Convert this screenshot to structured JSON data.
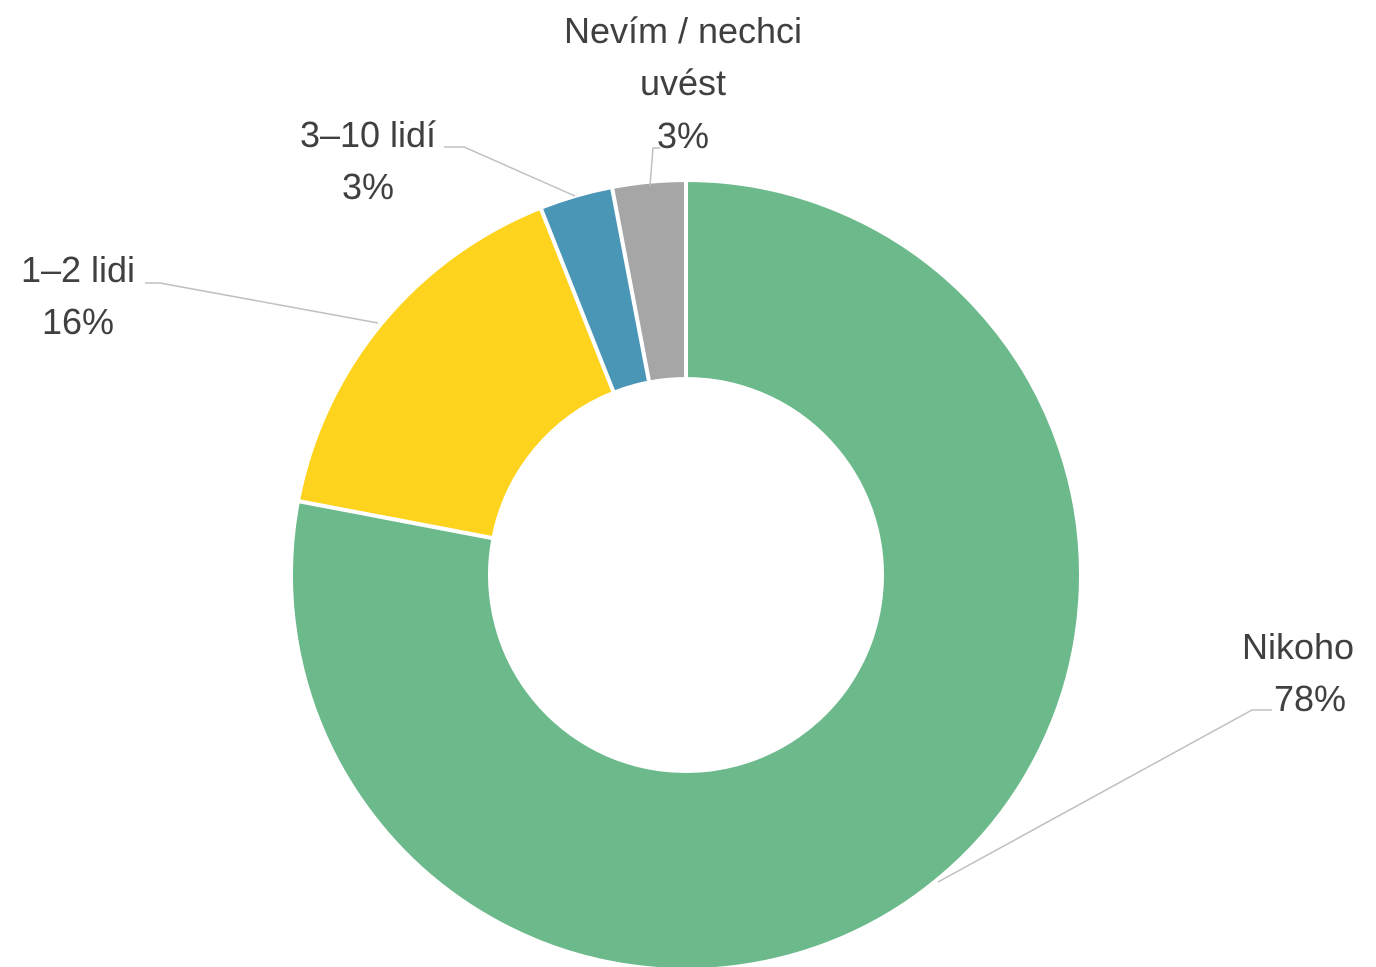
{
  "chart_data": {
    "type": "pie",
    "variant": "doughnut",
    "title": "",
    "legend": "none",
    "slices": [
      {
        "label": "Nikoho",
        "value": 78,
        "value_label": "78%",
        "color": "#6cba8b"
      },
      {
        "label": "1–2 lidi",
        "value": 16,
        "value_label": "16%",
        "color": "#fdd31d"
      },
      {
        "label": "3–10 lidí",
        "value": 3,
        "value_label": "3%",
        "color": "#4a96b6"
      },
      {
        "label": "Nevím / nechci uvést",
        "value": 3,
        "value_label": "3%",
        "color": "#a6a6a6"
      }
    ]
  }
}
